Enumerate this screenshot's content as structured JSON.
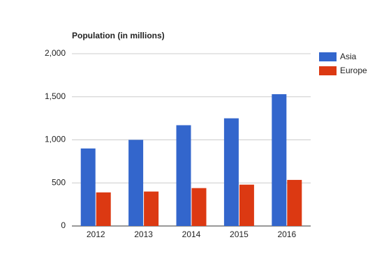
{
  "chart_data": {
    "type": "bar",
    "title": "Population (in millions)",
    "categories": [
      "2012",
      "2013",
      "2014",
      "2015",
      "2016"
    ],
    "series": [
      {
        "name": "Asia",
        "color": "#3366cc",
        "values": [
          900,
          1000,
          1170,
          1250,
          1530
        ]
      },
      {
        "name": "Europe",
        "color": "#dc3912",
        "values": [
          390,
          400,
          440,
          480,
          535
        ]
      }
    ],
    "ylim": [
      0,
      2000
    ],
    "yticks": [
      0,
      500,
      {
        "value": 1000,
        "label": "1,000"
      },
      {
        "value": 1500,
        "label": "1,500"
      },
      {
        "value": 2000,
        "label": "2,000"
      }
    ],
    "grid": true,
    "legend": "right"
  }
}
